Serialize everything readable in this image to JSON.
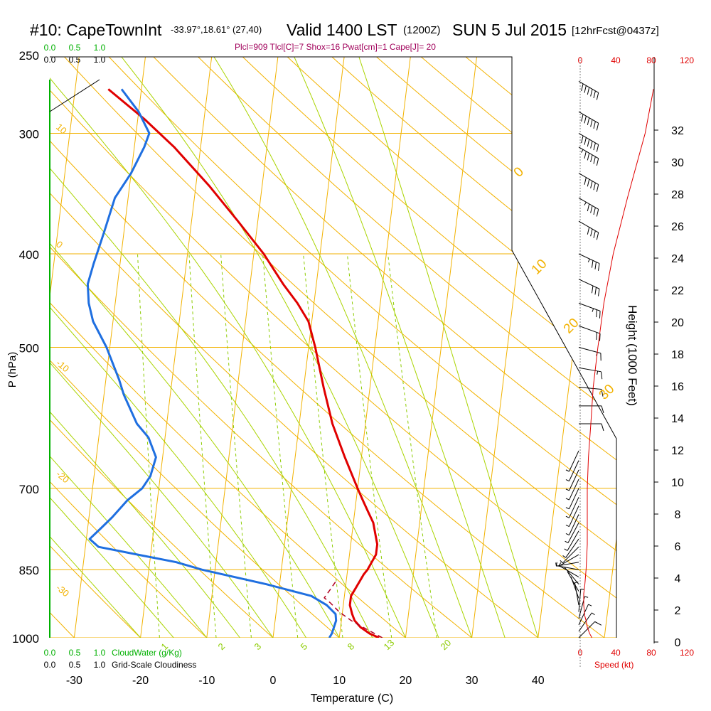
{
  "header": {
    "station": "#10: CapeTownInt",
    "coords": "-33.97°,18.61° (27,40)",
    "valid": "Valid 1400 LST",
    "zulu": "(1200Z)",
    "date": "SUN 5 Jul 2015",
    "fcst": "[12hrFcst@0437z]"
  },
  "indices": "Plcl=909 Tlcl[C]=7 Shox=16 Pwat[cm]=1 Cape[J]= 20",
  "colors": {
    "isobar": "#f2b200",
    "mixing_ratio": "#8ccc00",
    "moist_adiabat": "#aad400",
    "temperature": "#e00000",
    "dewpoint": "#1f6fe0",
    "parcel": "#b00020",
    "cloud": "#00b000",
    "speed": "#e00000",
    "title_indices": "#a0005a"
  },
  "chart_data": {
    "type": "skew-t",
    "xlabel": "Temperature (C)",
    "ylabel": "P (hPa)",
    "y2label": "Height (1000 Feet)",
    "x_ticks": [
      -30,
      -20,
      -10,
      0,
      10,
      20,
      30,
      40
    ],
    "pressure_ticks": [
      250,
      300,
      400,
      500,
      700,
      850,
      1000
    ],
    "height_ticks": [
      0,
      2,
      4,
      6,
      8,
      10,
      12,
      14,
      16,
      18,
      20,
      22,
      24,
      26,
      28,
      30,
      32
    ],
    "speed_ticks_top": [
      "0",
      "40",
      "80",
      "120"
    ],
    "speed_ticks_bottom": [
      "0",
      "40",
      "80",
      "120"
    ],
    "speed_label": "Speed (kt)",
    "cloud_scale_top": [
      "0.0",
      "0.5",
      "1.0"
    ],
    "cloud_scale_bottom": [
      "0.0",
      "0.5",
      "1.0"
    ],
    "cloud_water_label": "CloudWater (g/Kg)",
    "cloudiness_label": "Grid-Scale Cloudiness",
    "dry_adiabat_labels": [
      "10",
      "0",
      "-10",
      "-20",
      "-30"
    ],
    "moist_adiabat_labels": [
      "0",
      "10",
      "20",
      "30"
    ],
    "mixing_ratio_labels": [
      "1",
      "2",
      "3",
      "5",
      "8",
      "13",
      "20"
    ],
    "temperature": [
      [
        1000,
        16.0
      ],
      [
        990,
        14.5
      ],
      [
        975,
        13.0
      ],
      [
        960,
        12.0
      ],
      [
        945,
        11.5
      ],
      [
        925,
        11.0
      ],
      [
        905,
        11.0
      ],
      [
        890,
        11.5
      ],
      [
        875,
        12.0
      ],
      [
        860,
        12.5
      ],
      [
        850,
        13.0
      ],
      [
        820,
        14.0
      ],
      [
        800,
        14.0
      ],
      [
        780,
        13.5
      ],
      [
        760,
        13.0
      ],
      [
        740,
        12.0
      ],
      [
        720,
        11.0
      ],
      [
        700,
        10.0
      ],
      [
        650,
        7.5
      ],
      [
        600,
        5.0
      ],
      [
        550,
        3.0
      ],
      [
        500,
        1.0
      ],
      [
        470,
        -0.5
      ],
      [
        450,
        -2.5
      ],
      [
        430,
        -5.0
      ],
      [
        400,
        -8.5
      ],
      [
        370,
        -13.0
      ],
      [
        340,
        -18.0
      ],
      [
        310,
        -24.0
      ],
      [
        290,
        -29.0
      ],
      [
        270,
        -35.0
      ]
    ],
    "dewpoint": [
      [
        1000,
        8.5
      ],
      [
        990,
        8.8
      ],
      [
        975,
        9.0
      ],
      [
        960,
        9.2
      ],
      [
        945,
        9.0
      ],
      [
        925,
        7.5
      ],
      [
        905,
        5.0
      ],
      [
        880,
        -2.0
      ],
      [
        850,
        -12.0
      ],
      [
        835,
        -16.0
      ],
      [
        820,
        -22.0
      ],
      [
        805,
        -28.0
      ],
      [
        790,
        -29.5
      ],
      [
        770,
        -28.0
      ],
      [
        750,
        -26.5
      ],
      [
        720,
        -24.5
      ],
      [
        700,
        -22.5
      ],
      [
        680,
        -21.5
      ],
      [
        650,
        -21.0
      ],
      [
        620,
        -22.5
      ],
      [
        600,
        -24.5
      ],
      [
        560,
        -27.0
      ],
      [
        540,
        -28.0
      ],
      [
        500,
        -30.5
      ],
      [
        470,
        -33.0
      ],
      [
        450,
        -34.0
      ],
      [
        430,
        -34.5
      ],
      [
        410,
        -34.0
      ],
      [
        380,
        -33.0
      ],
      [
        350,
        -32.0
      ],
      [
        330,
        -30.0
      ],
      [
        310,
        -28.5
      ],
      [
        300,
        -28.0
      ],
      [
        285,
        -30.0
      ],
      [
        270,
        -33.0
      ]
    ],
    "parcel": [
      [
        1000,
        16.5
      ],
      [
        980,
        14.0
      ],
      [
        960,
        11.5
      ],
      [
        940,
        9.5
      ],
      [
        920,
        8.0
      ],
      [
        909,
        7.0
      ],
      [
        890,
        7.8
      ],
      [
        870,
        8.6
      ]
    ],
    "surface_temperature": 17.5,
    "surface_dewpoint": 10.7,
    "wind_speed_profile": [
      [
        1000,
        10
      ],
      [
        990,
        8
      ],
      [
        975,
        6
      ],
      [
        960,
        5
      ],
      [
        950,
        4
      ],
      [
        925,
        3
      ],
      [
        900,
        3
      ],
      [
        880,
        4
      ],
      [
        850,
        5
      ],
      [
        800,
        6
      ],
      [
        750,
        6
      ],
      [
        700,
        6
      ],
      [
        650,
        7
      ],
      [
        600,
        9
      ],
      [
        550,
        11
      ],
      [
        500,
        15
      ],
      [
        450,
        20
      ],
      [
        400,
        28
      ],
      [
        350,
        40
      ],
      [
        300,
        55
      ],
      [
        270,
        62
      ]
    ],
    "wind_barbs": [
      [
        1000,
        10,
        225
      ],
      [
        985,
        9,
        215
      ],
      [
        970,
        8,
        205
      ],
      [
        955,
        7,
        195
      ],
      [
        940,
        6,
        185
      ],
      [
        925,
        5,
        170
      ],
      [
        910,
        4,
        160
      ],
      [
        895,
        4,
        150
      ],
      [
        880,
        4,
        140
      ],
      [
        865,
        5,
        120
      ],
      [
        850,
        6,
        100
      ],
      [
        835,
        5,
        80
      ],
      [
        820,
        4,
        60
      ],
      [
        805,
        5,
        45
      ],
      [
        790,
        6,
        35
      ],
      [
        775,
        6,
        30
      ],
      [
        760,
        6,
        28
      ],
      [
        745,
        6,
        25
      ],
      [
        730,
        6,
        25
      ],
      [
        715,
        6,
        25
      ],
      [
        700,
        6,
        25
      ],
      [
        685,
        6,
        25
      ],
      [
        670,
        6,
        25
      ],
      [
        655,
        6,
        25
      ],
      [
        640,
        7,
        25
      ],
      [
        600,
        10,
        270
      ],
      [
        575,
        12,
        270
      ],
      [
        550,
        14,
        275
      ],
      [
        525,
        16,
        280
      ],
      [
        500,
        18,
        285
      ],
      [
        475,
        20,
        290
      ],
      [
        450,
        25,
        290
      ],
      [
        425,
        30,
        295
      ],
      [
        400,
        35,
        295
      ],
      [
        370,
        40,
        300
      ],
      [
        350,
        45,
        300
      ],
      [
        330,
        50,
        300
      ],
      [
        310,
        55,
        300
      ],
      [
        300,
        60,
        300
      ],
      [
        285,
        60,
        300
      ],
      [
        265,
        60,
        300
      ]
    ]
  }
}
